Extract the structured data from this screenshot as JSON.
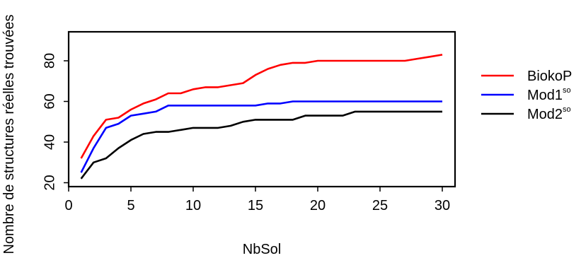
{
  "chart_data": {
    "type": "line",
    "title": "",
    "xlabel": "NbSol",
    "ylabel": "Nombre de structures réelles trouvées",
    "xlim": [
      0,
      30
    ],
    "ylim": [
      19,
      92
    ],
    "xticks": [
      0,
      5,
      10,
      15,
      20,
      25,
      30
    ],
    "xtick_labels": [
      "0",
      "5",
      "10",
      "15",
      "20",
      "25",
      "30"
    ],
    "yticks": [
      20,
      40,
      60,
      80
    ],
    "ytick_labels": [
      "20",
      "40",
      "60",
      "80"
    ],
    "x": [
      1,
      2,
      3,
      4,
      5,
      6,
      7,
      8,
      9,
      10,
      11,
      12,
      13,
      14,
      15,
      16,
      17,
      18,
      19,
      20,
      21,
      22,
      23,
      24,
      25,
      26,
      27,
      28,
      29,
      30
    ],
    "legend_position": "right",
    "grid": false,
    "series": [
      {
        "name": "BiokoP",
        "name_sup": "",
        "color": "#ff0000",
        "values": [
          32,
          43,
          51,
          52,
          56,
          59,
          61,
          64,
          64,
          66,
          67,
          67,
          68,
          69,
          73,
          76,
          78,
          79,
          79,
          80,
          80,
          80,
          80,
          80,
          80,
          80,
          80,
          81,
          82,
          83
        ]
      },
      {
        "name": "Mod1",
        "name_sup": "so",
        "color": "#0000ff",
        "values": [
          25,
          37,
          47,
          49,
          53,
          54,
          55,
          58,
          58,
          58,
          58,
          58,
          58,
          58,
          58,
          59,
          59,
          60,
          60,
          60,
          60,
          60,
          60,
          60,
          60,
          60,
          60,
          60,
          60,
          60
        ]
      },
      {
        "name": "Mod2",
        "name_sup": "so",
        "color": "#000000",
        "values": [
          22,
          30,
          32,
          37,
          41,
          44,
          45,
          45,
          46,
          47,
          47,
          47,
          48,
          50,
          51,
          51,
          51,
          51,
          53,
          53,
          53,
          53,
          55,
          55,
          55,
          55,
          55,
          55,
          55,
          55
        ]
      }
    ]
  }
}
